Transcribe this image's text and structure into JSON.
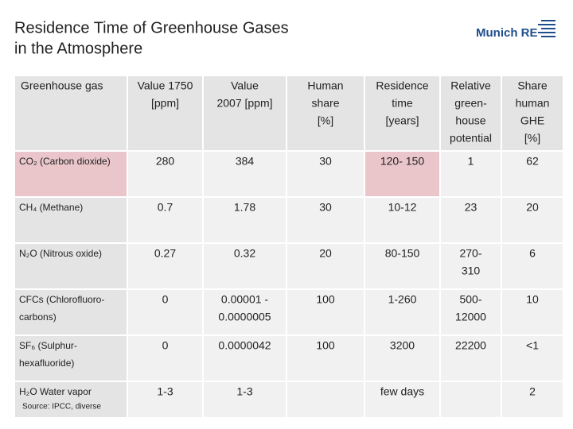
{
  "title": [
    "Residence Time of Greenhouse Gases",
    "in the Atmosphere"
  ],
  "logo": "Munich RE",
  "table": {
    "header": [
      [
        "Greenhouse gas"
      ],
      [
        "Value 1750",
        "[ppm]"
      ],
      [
        "Value",
        "2007 [ppm]"
      ],
      [
        "Human",
        "share",
        "[%]"
      ],
      [
        "Residence",
        "time",
        "[years]"
      ],
      [
        "Relative",
        "green-",
        "house",
        "potential"
      ],
      [
        "Share",
        "human",
        "GHE",
        "[%]"
      ]
    ],
    "rows": [
      [
        [
          "CO₂ (Carbon dioxide)"
        ],
        [
          "280"
        ],
        [
          "384"
        ],
        [
          "30"
        ],
        [
          "120- 150"
        ],
        [
          "1"
        ],
        [
          "62"
        ]
      ],
      [
        [
          "CH₄ (Methane)"
        ],
        [
          "0.7"
        ],
        [
          "1.78"
        ],
        [
          "30"
        ],
        [
          "10-12"
        ],
        [
          "23"
        ],
        [
          "20"
        ]
      ],
      [
        [
          "N₂O  (Nitrous oxide)"
        ],
        [
          "0.27"
        ],
        [
          "0.32"
        ],
        [
          "20"
        ],
        [
          "80-150"
        ],
        [
          "270-",
          "310"
        ],
        [
          "6"
        ]
      ],
      [
        [
          "CFCs (Chlorofluoro-",
          "carbons)"
        ],
        [
          "0"
        ],
        [
          "0.00001 -",
          "0.0000005"
        ],
        [
          "100"
        ],
        [
          "1-260"
        ],
        [
          "500-",
          "12000"
        ],
        [
          "10"
        ]
      ],
      [
        [
          "SF₆  (Sulphur-",
          "hexafluoride)"
        ],
        [
          "0"
        ],
        [
          "0.0000042"
        ],
        [
          "100"
        ],
        [
          "3200"
        ],
        [
          "22200"
        ],
        [
          "<1"
        ]
      ],
      [
        [
          "H₂O Water vapor"
        ],
        [
          "1-3"
        ],
        [
          "1-3"
        ],
        [],
        [
          "few days"
        ],
        [],
        [
          "2"
        ]
      ]
    ]
  },
  "source": "Source: IPCC, diverse"
}
